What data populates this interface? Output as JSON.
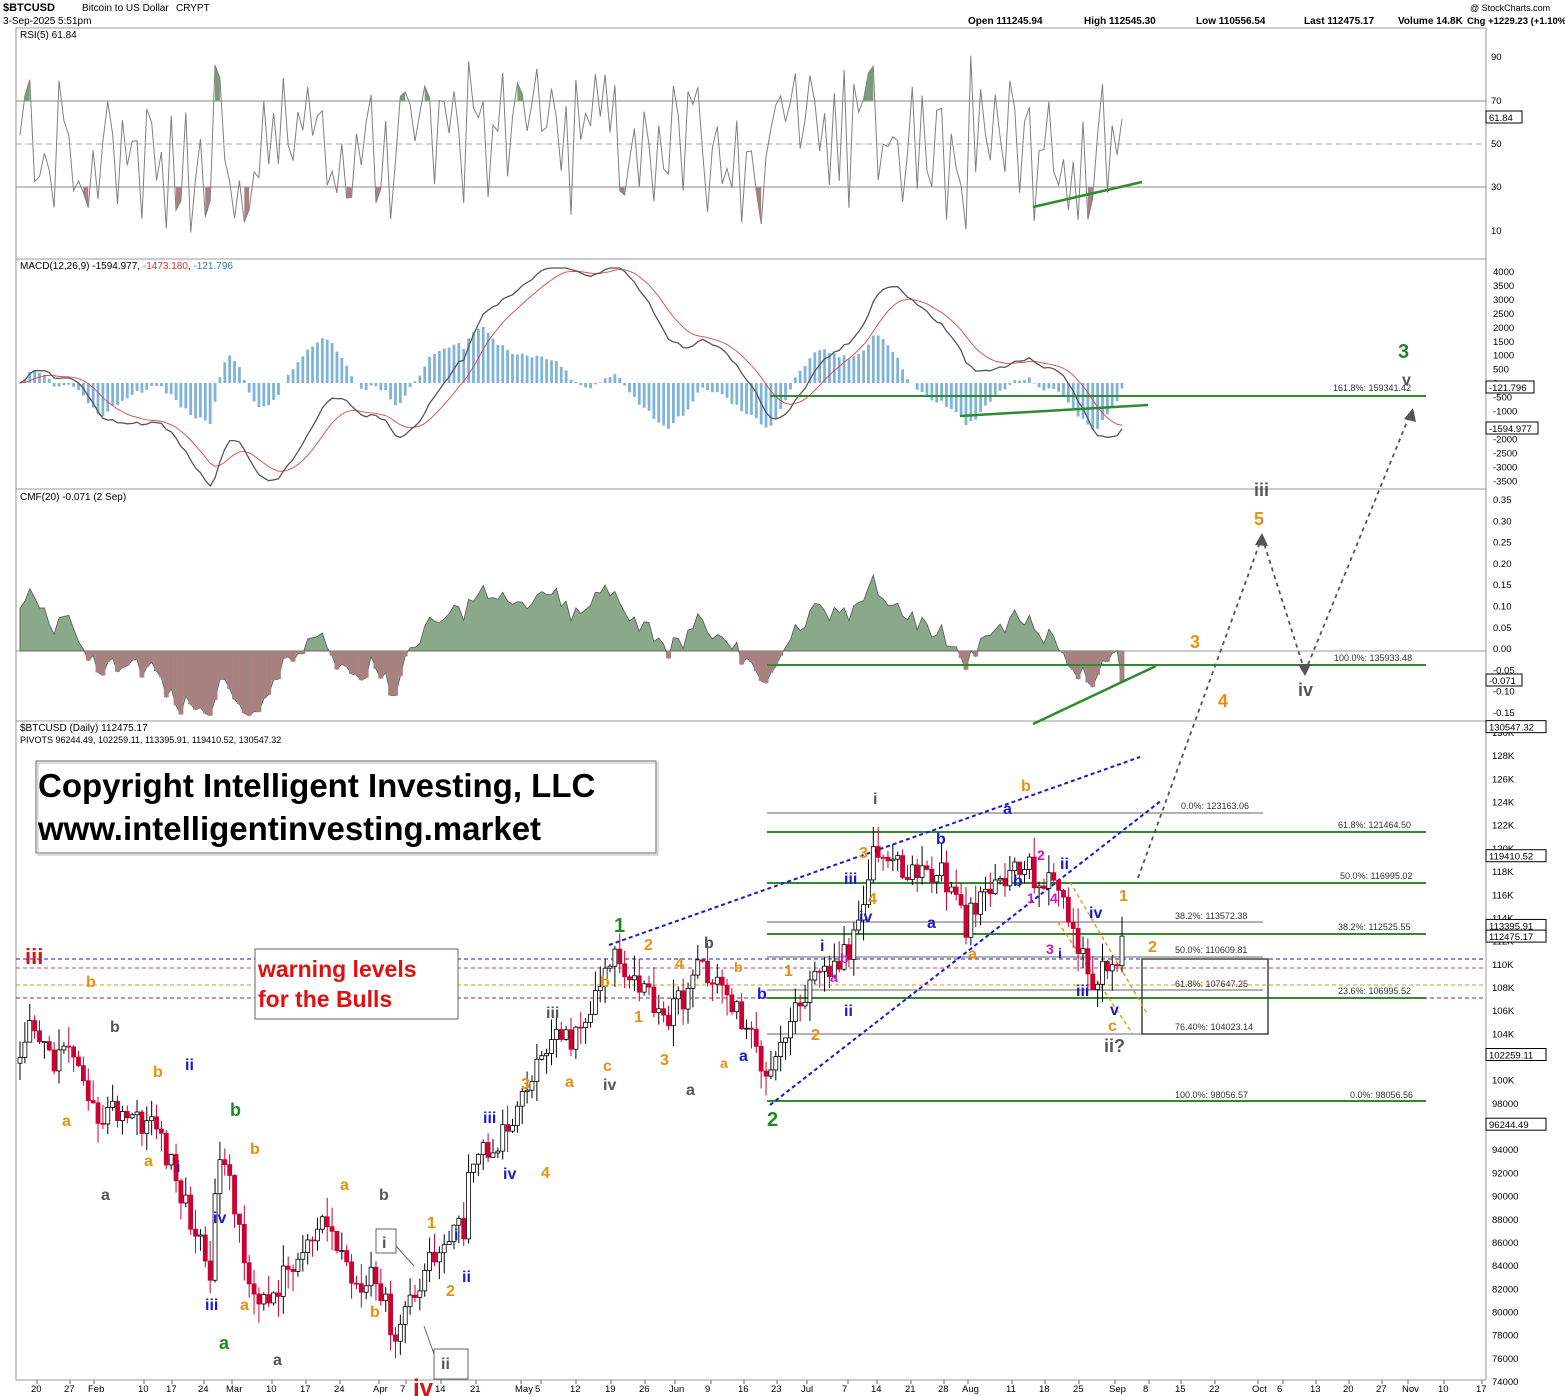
{
  "header": {
    "symbol": "$BTCUSD",
    "name": "Bitcoin to US Dollar",
    "exchange": "CRYPT",
    "date": "3-Sep-2025 5:51pm",
    "open": "Open 111245.94",
    "high": "High 112545.30",
    "low": "Low 110556.54",
    "last": "Last 112475.17",
    "volume": "Volume 14.8K",
    "chg": "Chg +1229.23 (+1.10%)",
    "attribution": "@ StockCharts.com"
  },
  "rsi": {
    "label": "RSI(5) 61.84",
    "ticks": [
      "90",
      "70",
      "50",
      "30",
      "10"
    ],
    "tag": "61.84"
  },
  "macd": {
    "label": "MACD(12,26,9)",
    "v1": "-1594.977",
    "v2": "-1473.180",
    "v3": "-121.796",
    "ticks": [
      "4000",
      "3500",
      "3000",
      "2500",
      "2000",
      "1500",
      "1000",
      "500",
      "0",
      "-500",
      "-1000",
      "-1500",
      "-2000",
      "-2500",
      "-3000",
      "-3500"
    ],
    "tag1": "-121.796",
    "tag2": "-1594.977",
    "fib": "161.8%: 159341.42"
  },
  "cmf": {
    "label": "CMF(20) -0.071 (2 Sep)",
    "ticks": [
      "0.35",
      "0.30",
      "0.25",
      "0.20",
      "0.15",
      "0.10",
      "0.05",
      "0.00",
      "-0.05",
      "-0.10",
      "-0.15"
    ],
    "tag": "-0.071",
    "fib": "100.0%: 135933.48"
  },
  "price": {
    "label": "$BTCUSD (Daily) 112475.17",
    "pivots": "PIVOTS 96244.49, 102259.11, 113395.91, 119410.52, 130547.32",
    "ticks": [
      "130K",
      "128K",
      "126K",
      "124K",
      "122K",
      "120K",
      "118K",
      "116K",
      "114K",
      "112K",
      "110K",
      "108K",
      "106K",
      "104K",
      "102K",
      "100K",
      "98000",
      "96000",
      "94000",
      "92000",
      "90000",
      "88000",
      "86000",
      "84000",
      "82000",
      "80000",
      "78000",
      "76000",
      "74000"
    ],
    "tags": [
      "130547.32",
      "119410.52",
      "113395.91",
      "112475.17",
      "102259.11",
      "96244.49"
    ]
  },
  "fib_levels": {
    "f0": "0.0%: 123163.06",
    "f618": "61.8%: 121464.50",
    "f50": "50.0%: 116995.02",
    "f382a": "38.2%: 113572.38",
    "f382b": "38.2%: 112525.55",
    "f50b": "50.0%: 110609.81",
    "f618b": "61.8%: 107647.25",
    "f236": "23.6%: 106995.52",
    "f764": "76.40%: 104023.14",
    "f100": "100.0%: 98056.57",
    "f0b": "0.0%: 98056.56"
  },
  "x_axis": [
    "20",
    "27",
    "Feb",
    "10",
    "17",
    "24",
    "Mar",
    "10",
    "17",
    "24",
    "Apr",
    "7",
    "14",
    "21",
    "May",
    "5",
    "12",
    "19",
    "26",
    "Jun",
    "9",
    "16",
    "23",
    "Jul",
    "7",
    "14",
    "21",
    "28",
    "Aug",
    "11",
    "18",
    "25",
    "Sep",
    "8",
    "15",
    "22",
    "Oct",
    "6",
    "13",
    "20",
    "27",
    "Nov",
    "10",
    "17"
  ],
  "annotations": {
    "copyright1": "Copyright Intelligent Investing, LLC",
    "copyright2": "www.intelligentinvesting.market",
    "warning1": "warning levels",
    "warning2": "for the Bulls"
  },
  "waves": {
    "w1": "1",
    "w2": "2",
    "w3": "3",
    "iii": "iii",
    "iv": "iv",
    "ii": "ii",
    "i": "i",
    "v": "v",
    "a": "a",
    "b": "b",
    "c": "c",
    "n1": "1",
    "n2": "2",
    "n3": "3",
    "n4": "4",
    "n5": "5",
    "iiq": "ii?"
  },
  "colors": {
    "candle_up": "#ffffff",
    "candle_down": "#cc0033",
    "rsi_line": "#808080",
    "overbought_fill": "#7a9a7a",
    "oversold_fill": "#a88080",
    "macd_line": "#555555",
    "signal_line": "#e03030",
    "histogram": "#7fb4d8",
    "cmf_pos": "#8aa88a",
    "cmf_neg": "#a88080",
    "fib_green": "#2e8b2e",
    "fib_gray": "#666666",
    "trend_blue": "#1a1acc",
    "orange": "#e8900c",
    "wave_red": "#e01010",
    "wave_blue": "#1a1acc",
    "wave_green": "#1a8a2a",
    "wave_gray": "#555555",
    "magenta": "#cc10cc"
  },
  "chart_data": {
    "type": "candlestick",
    "title": "$BTCUSD (Daily) 112475.17",
    "y_range": [
      73500,
      131000
    ],
    "x_dates": [
      "2025-01-20",
      "2025-02-03",
      "2025-03-03",
      "2025-04-07",
      "2025-05-05",
      "2025-06-02",
      "2025-07-01",
      "2025-08-04",
      "2025-09-01",
      "2025-10-01",
      "2025-11-03"
    ],
    "close_path": [
      [
        "2025-01-20",
        101000
      ],
      [
        "2025-01-22",
        104000
      ],
      [
        "2025-01-27",
        102000
      ],
      [
        "2025-01-31",
        102500
      ],
      [
        "2025-02-03",
        97000
      ],
      [
        "2025-02-10",
        97500
      ],
      [
        "2025-02-17",
        96000
      ],
      [
        "2025-02-24",
        88000
      ],
      [
        "2025-02-28",
        84000
      ],
      [
        "2025-03-02",
        94000
      ],
      [
        "2025-03-05",
        89000
      ],
      [
        "2025-03-10",
        80000
      ],
      [
        "2025-03-17",
        84000
      ],
      [
        "2025-03-24",
        87500
      ],
      [
        "2025-03-30",
        82500
      ],
      [
        "2025-04-02",
        84000
      ],
      [
        "2025-04-07",
        78000
      ],
      [
        "2025-04-09",
        80500
      ],
      [
        "2025-04-14",
        84500
      ],
      [
        "2025-04-21",
        87500
      ],
      [
        "2025-04-22",
        93000
      ],
      [
        "2025-05-01",
        96000
      ],
      [
        "2025-05-08",
        103000
      ],
      [
        "2025-05-15",
        104000
      ],
      [
        "2025-05-22",
        111000
      ],
      [
        "2025-05-26",
        109000
      ],
      [
        "2025-06-02",
        105500
      ],
      [
        "2025-06-09",
        110000
      ],
      [
        "2025-06-16",
        106000
      ],
      [
        "2025-06-22",
        101000
      ],
      [
        "2025-06-30",
        107500
      ],
      [
        "2025-07-09",
        111000
      ],
      [
        "2025-07-14",
        120000
      ],
      [
        "2025-07-21",
        118000
      ],
      [
        "2025-07-28",
        118000
      ],
      [
        "2025-08-02",
        113500
      ],
      [
        "2025-08-08",
        117000
      ],
      [
        "2025-08-14",
        118500
      ],
      [
        "2025-08-18",
        117000
      ],
      [
        "2025-08-22",
        116500
      ],
      [
        "2025-08-25",
        111000
      ],
      [
        "2025-08-29",
        108300
      ],
      [
        "2025-09-02",
        111200
      ],
      [
        "2025-09-03",
        112475
      ]
    ],
    "rsi": {
      "overbought": 70,
      "oversold": 30,
      "last": 61.84
    },
    "macd": {
      "macd": -1594.977,
      "signal": -1473.18,
      "histogram": -121.796
    },
    "cmf": {
      "last": -0.071
    }
  }
}
